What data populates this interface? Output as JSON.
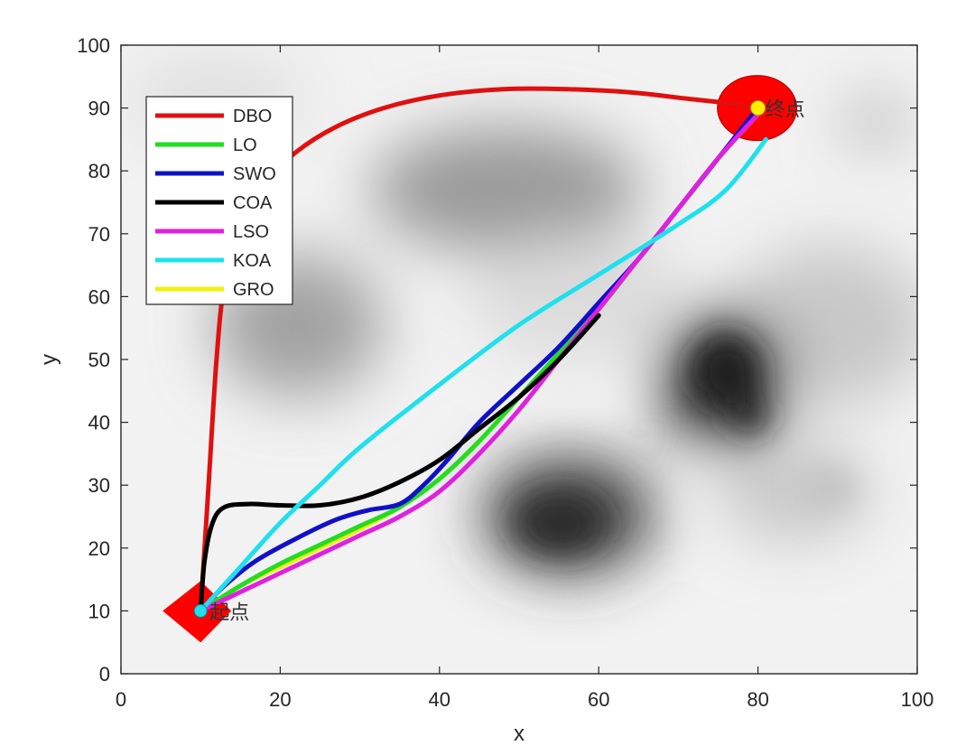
{
  "chart_data": {
    "type": "line",
    "xlabel": "x",
    "ylabel": "y",
    "xlim": [
      0,
      100
    ],
    "ylim": [
      0,
      100
    ],
    "xticks": [
      0,
      20,
      40,
      60,
      80,
      100
    ],
    "yticks": [
      0,
      10,
      20,
      30,
      40,
      50,
      60,
      70,
      80,
      90,
      100
    ],
    "grid": false,
    "legend_position": "top-left",
    "background": "grayscale terrain map with dark obstacle regions",
    "start": {
      "x": 10,
      "y": 10,
      "label": "起点",
      "marker": "red diamond",
      "color": "#ff0000"
    },
    "goal": {
      "x": 80,
      "y": 90,
      "label": "终点",
      "marker": "red circle",
      "color": "#ff0000"
    },
    "series": [
      {
        "name": "DBO",
        "color": "#e01010",
        "x": [
          10,
          11,
          12,
          13,
          15,
          18,
          22,
          27,
          33,
          40,
          48,
          56,
          64,
          71,
          76,
          80
        ],
        "y": [
          10,
          30,
          50,
          62,
          72,
          78,
          83,
          87,
          90,
          92,
          93,
          93,
          92.5,
          91.5,
          90.8,
          90
        ]
      },
      {
        "name": "LO",
        "color": "#22dd22",
        "x": [
          10,
          15,
          20,
          25,
          30,
          35,
          40,
          45,
          50,
          55,
          60,
          65,
          70,
          75,
          80
        ],
        "y": [
          10,
          14,
          17.5,
          20.5,
          23.5,
          26.5,
          31,
          37,
          44,
          51,
          58,
          66,
          74,
          82,
          89
        ]
      },
      {
        "name": "SWO",
        "color": "#1010c8",
        "x": [
          10,
          13,
          17,
          22,
          27,
          31,
          35,
          38,
          41,
          45,
          50,
          55,
          60,
          65,
          70,
          75,
          80
        ],
        "y": [
          10,
          14,
          18,
          21.5,
          24.5,
          26,
          27,
          30,
          34,
          40,
          46,
          52,
          59,
          66,
          74,
          82,
          90
        ]
      },
      {
        "name": "COA",
        "color": "#000000",
        "x": [
          10,
          10.5,
          11.5,
          13,
          16,
          20,
          25,
          30,
          35,
          40,
          45,
          50,
          55,
          60
        ],
        "y": [
          10,
          18,
          24,
          26.5,
          27,
          26.8,
          26.8,
          28,
          30.5,
          34,
          39,
          44,
          50,
          57
        ]
      },
      {
        "name": "LSO",
        "color": "#e020e0",
        "x": [
          10,
          15,
          20,
          25,
          30,
          35,
          40,
          45,
          50,
          55,
          60,
          65,
          70,
          75,
          80
        ],
        "y": [
          10,
          13,
          16,
          19,
          22,
          25,
          29,
          35,
          42,
          50,
          58,
          66,
          74,
          82,
          89
        ]
      },
      {
        "name": "KOA",
        "color": "#20e0ee",
        "x": [
          10,
          15,
          20,
          25,
          30,
          40,
          50,
          60,
          70,
          76,
          81
        ],
        "y": [
          10,
          17,
          24,
          30,
          36,
          46,
          55.5,
          63.5,
          71.5,
          77,
          85
        ]
      },
      {
        "name": "GRO",
        "color": "#f0f010",
        "x": [
          10,
          15,
          20,
          25,
          30,
          35,
          40,
          45,
          50,
          55,
          60,
          65,
          70,
          75,
          80
        ],
        "y": [
          10,
          14,
          17,
          20,
          23,
          26.5,
          31,
          37,
          44,
          51,
          58,
          66,
          74,
          82,
          89
        ]
      }
    ]
  }
}
